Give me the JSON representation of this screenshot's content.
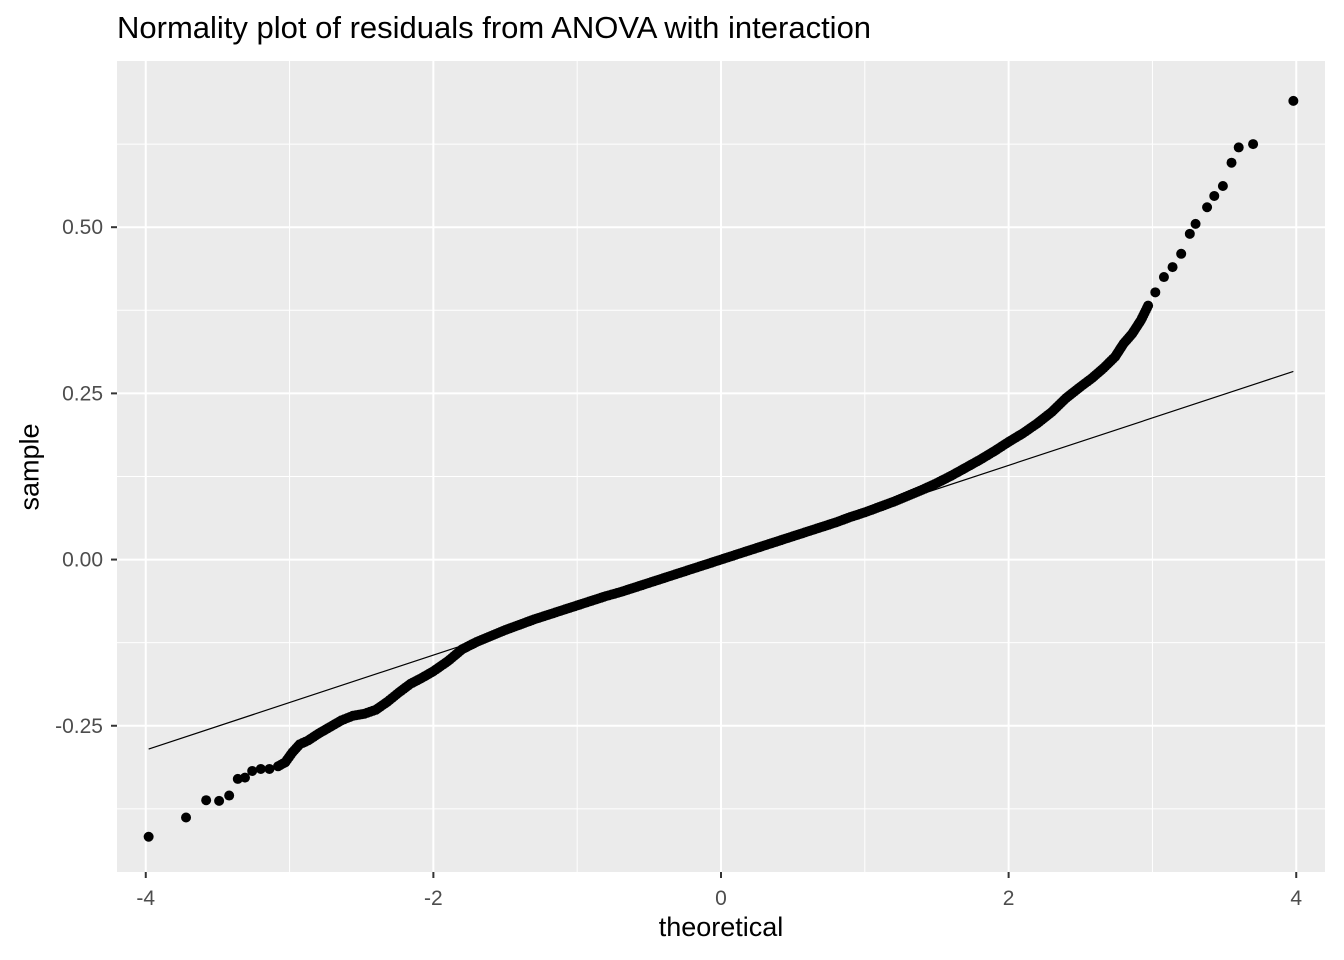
{
  "chart_data": {
    "type": "scatter",
    "title": "Normality plot of residuals from ANOVA with interaction",
    "xlabel": "theoretical",
    "ylabel": "sample",
    "xlim": [
      -4.2,
      4.2
    ],
    "ylim": [
      -0.47,
      0.75
    ],
    "x_ticks": [
      -4,
      -2,
      0,
      2,
      4
    ],
    "x_tick_labels": [
      "-4",
      "-2",
      "0",
      "2",
      "4"
    ],
    "y_ticks": [
      -0.25,
      0.0,
      0.25,
      0.5
    ],
    "y_tick_labels": [
      "-0.25",
      "0.00",
      "0.25",
      "0.50"
    ],
    "grid": true,
    "legend": "none",
    "series": [
      {
        "kind": "points",
        "points": [
          [
            -3.98,
            -0.417
          ],
          [
            -3.72,
            -0.388
          ],
          [
            -3.58,
            -0.362
          ],
          [
            -3.49,
            -0.363
          ],
          [
            -3.42,
            -0.355
          ],
          [
            -3.36,
            -0.33
          ],
          [
            -3.31,
            -0.328
          ],
          [
            -3.26,
            -0.318
          ],
          [
            -3.2,
            -0.315
          ],
          [
            -3.14,
            -0.315
          ],
          [
            -3.08,
            -0.311
          ],
          [
            -3.03,
            -0.305
          ],
          [
            -2.98,
            -0.29
          ],
          [
            -2.93,
            -0.278
          ],
          [
            -2.87,
            -0.272
          ],
          [
            -2.8,
            -0.262
          ],
          [
            -2.72,
            -0.252
          ],
          [
            -2.64,
            -0.242
          ],
          [
            -2.56,
            -0.235
          ],
          [
            -2.48,
            -0.232
          ],
          [
            -2.4,
            -0.226
          ],
          [
            -2.32,
            -0.214
          ],
          [
            -2.24,
            -0.2
          ],
          [
            -2.16,
            -0.187
          ],
          [
            -2.08,
            -0.178
          ],
          [
            -2.0,
            -0.168
          ],
          [
            -1.9,
            -0.153
          ],
          [
            -1.8,
            -0.135
          ],
          [
            -1.7,
            -0.124
          ],
          [
            -1.6,
            -0.115
          ],
          [
            -1.5,
            -0.106
          ],
          [
            -1.4,
            -0.098
          ],
          [
            -1.3,
            -0.09
          ],
          [
            -1.2,
            -0.083
          ],
          [
            -1.1,
            -0.076
          ],
          [
            -1.0,
            -0.069
          ],
          [
            -0.9,
            -0.062
          ],
          [
            -0.8,
            -0.055
          ],
          [
            -0.7,
            -0.049
          ],
          [
            -0.6,
            -0.042
          ],
          [
            -0.5,
            -0.035
          ],
          [
            -0.4,
            -0.028
          ],
          [
            -0.3,
            -0.021
          ],
          [
            -0.2,
            -0.014
          ],
          [
            -0.1,
            -0.007
          ],
          [
            0.0,
            0.0
          ],
          [
            0.1,
            0.007
          ],
          [
            0.2,
            0.014
          ],
          [
            0.3,
            0.021
          ],
          [
            0.4,
            0.028
          ],
          [
            0.5,
            0.035
          ],
          [
            0.6,
            0.042
          ],
          [
            0.7,
            0.049
          ],
          [
            0.8,
            0.056
          ],
          [
            0.9,
            0.064
          ],
          [
            1.0,
            0.071
          ],
          [
            1.1,
            0.079
          ],
          [
            1.2,
            0.087
          ],
          [
            1.3,
            0.096
          ],
          [
            1.4,
            0.105
          ],
          [
            1.5,
            0.115
          ],
          [
            1.6,
            0.126
          ],
          [
            1.7,
            0.138
          ],
          [
            1.8,
            0.15
          ],
          [
            1.9,
            0.163
          ],
          [
            2.0,
            0.177
          ],
          [
            2.1,
            0.19
          ],
          [
            2.2,
            0.205
          ],
          [
            2.3,
            0.222
          ],
          [
            2.4,
            0.243
          ],
          [
            2.5,
            0.26
          ],
          [
            2.58,
            0.273
          ],
          [
            2.66,
            0.288
          ],
          [
            2.74,
            0.305
          ],
          [
            2.8,
            0.325
          ],
          [
            2.86,
            0.34
          ],
          [
            2.92,
            0.36
          ],
          [
            2.97,
            0.382
          ],
          [
            3.02,
            0.402
          ],
          [
            3.08,
            0.425
          ],
          [
            3.14,
            0.44
          ],
          [
            3.2,
            0.46
          ],
          [
            3.26,
            0.49
          ],
          [
            3.3,
            0.505
          ],
          [
            3.38,
            0.53
          ],
          [
            3.43,
            0.547
          ],
          [
            3.49,
            0.562
          ],
          [
            3.55,
            0.597
          ],
          [
            3.6,
            0.62
          ],
          [
            3.7,
            0.625
          ],
          [
            3.98,
            0.69
          ]
        ]
      },
      {
        "kind": "reference_line",
        "points": [
          [
            -3.98,
            -0.285
          ],
          [
            3.98,
            0.283
          ]
        ]
      }
    ]
  }
}
